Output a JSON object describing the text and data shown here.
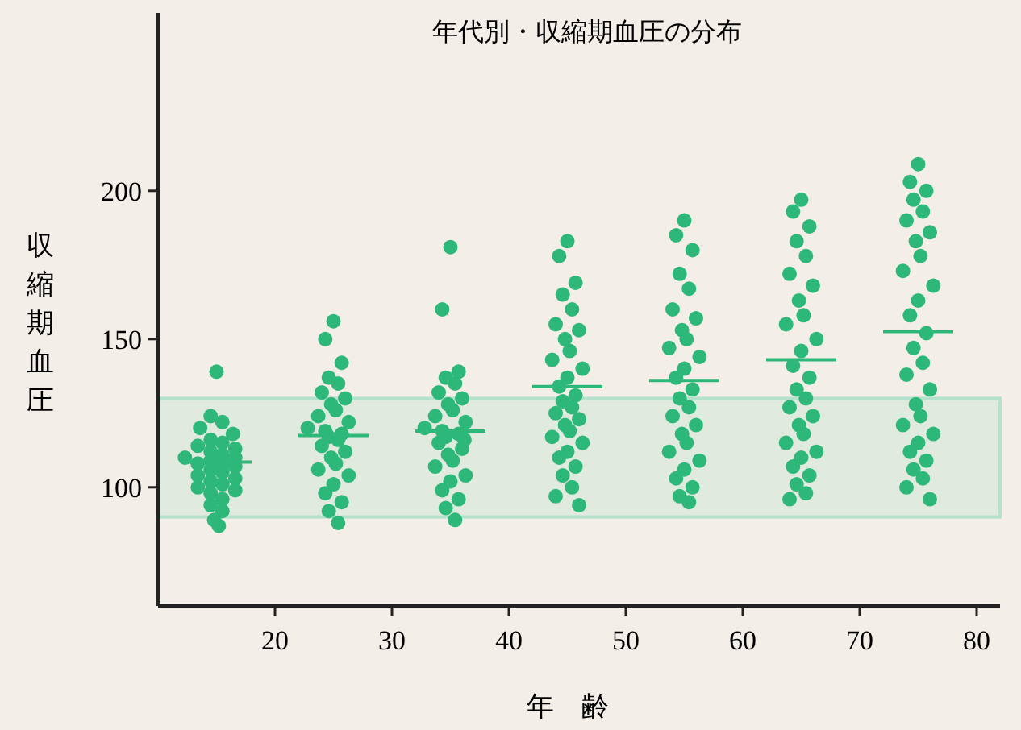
{
  "chart_data": {
    "type": "scatter",
    "title": "年代別・収縮期血圧の分布",
    "xlabel": "年　齢",
    "ylabel": "収縮期血圧",
    "xlim": [
      10,
      82
    ],
    "ylim": [
      60,
      260
    ],
    "xticks": [
      20,
      30,
      40,
      50,
      60,
      70,
      80
    ],
    "yticks": [
      100,
      150,
      200
    ],
    "marker": "circle",
    "grid": false,
    "bands": [
      {
        "axis": "y",
        "from": 90,
        "to": 130,
        "color": "#b5e2cc"
      }
    ],
    "series": [
      {
        "type": "line",
        "marker": "none",
        "color": "#2db87a",
        "x": [
          12,
          18
        ],
        "values": [
          108.5,
          108.5
        ]
      },
      {
        "type": "line",
        "marker": "none",
        "color": "#2db87a",
        "x": [
          22,
          28
        ],
        "values": [
          117.5,
          117.5
        ]
      },
      {
        "type": "line",
        "marker": "none",
        "color": "#2db87a",
        "x": [
          32,
          38
        ],
        "values": [
          119,
          119
        ]
      },
      {
        "type": "line",
        "marker": "none",
        "color": "#2db87a",
        "x": [
          42,
          48
        ],
        "values": [
          134,
          134
        ]
      },
      {
        "type": "line",
        "marker": "none",
        "color": "#2db87a",
        "x": [
          52,
          58
        ],
        "values": [
          136,
          136
        ]
      },
      {
        "type": "line",
        "marker": "none",
        "color": "#2db87a",
        "x": [
          62,
          68
        ],
        "values": [
          143,
          143
        ]
      },
      {
        "type": "line",
        "marker": "none",
        "color": "#2db87a",
        "x": [
          72,
          78
        ],
        "values": [
          152.5,
          152.5
        ]
      },
      {
        "color": "#2db87a",
        "x": [
          15,
          14.5,
          15.5,
          13.6,
          16.4,
          14.5,
          15.5,
          13.4,
          16.6,
          14.5,
          15.5,
          12.3,
          16.6,
          14.5,
          15.5,
          13.4,
          16.6,
          14.5,
          15.5,
          13.4,
          16.6,
          14.5,
          15.5,
          13.4,
          16.6,
          14.5,
          15.5,
          14.5,
          15.5,
          14.8,
          15.2
        ],
        "values": [
          139,
          124,
          122,
          120,
          118,
          116,
          115,
          114,
          113,
          112,
          111,
          110,
          110,
          109,
          108,
          108,
          107,
          106,
          105,
          104,
          103,
          102,
          101,
          100,
          99,
          98,
          96,
          94,
          92,
          89,
          87
        ]
      },
      {
        "color": "#2db87a",
        "x": [
          25,
          24.3,
          25.7,
          24.6,
          25.4,
          24,
          26,
          24.8,
          25.2,
          23.7,
          26.3,
          22.8,
          24.3,
          25.7,
          24.6,
          25.4,
          24,
          26,
          24.8,
          25.2,
          23.7,
          26.3,
          25,
          24.3,
          25.7,
          24.6,
          25.4
        ],
        "values": [
          156,
          150,
          142,
          137,
          135,
          132,
          130,
          128,
          126,
          124,
          122,
          120,
          119,
          118,
          117,
          116,
          114,
          112,
          110,
          108,
          106,
          104,
          101,
          98,
          95,
          92,
          88
        ]
      },
      {
        "color": "#2db87a",
        "x": [
          35,
          34.3,
          35.7,
          34.6,
          35.4,
          34,
          36,
          34.8,
          35.2,
          33.7,
          36.3,
          32.8,
          34.3,
          35.7,
          34.6,
          36.2,
          34,
          36,
          34.8,
          35.2,
          33.7,
          36.3,
          35,
          34.3,
          35.7,
          34.6,
          35.4
        ],
        "values": [
          181,
          160,
          139,
          137,
          135,
          132,
          130,
          128,
          126,
          124,
          122,
          120,
          119,
          118,
          117,
          116,
          115,
          113,
          111,
          109,
          107,
          104,
          102,
          99,
          96,
          93,
          89
        ]
      },
      {
        "color": "#2db87a",
        "x": [
          45,
          44.3,
          45.7,
          44.6,
          45.4,
          44,
          46,
          44.8,
          45.2,
          43.7,
          46.3,
          45,
          44.3,
          45.7,
          44.6,
          45.4,
          44,
          46,
          44.8,
          45.2,
          43.7,
          46.3,
          45,
          44.3,
          45.7,
          44.6,
          45.4,
          44,
          46
        ],
        "values": [
          183,
          178,
          169,
          165,
          160,
          155,
          153,
          150,
          146,
          143,
          140,
          137,
          134,
          131,
          129,
          127,
          125,
          123,
          121,
          119,
          117,
          115,
          112,
          110,
          107,
          104,
          100,
          97,
          94
        ]
      },
      {
        "color": "#2db87a",
        "x": [
          55,
          54.3,
          55.7,
          54.6,
          55.4,
          54,
          56,
          54.8,
          55.2,
          53.7,
          56.3,
          55,
          54.3,
          55.7,
          54.6,
          55.4,
          54,
          56,
          54.8,
          55.2,
          53.7,
          56.3,
          55,
          54.3,
          55.7,
          54.6,
          55.4
        ],
        "values": [
          190,
          185,
          180,
          172,
          167,
          160,
          157,
          153,
          150,
          147,
          144,
          140,
          137,
          133,
          130,
          127,
          124,
          121,
          118,
          115,
          112,
          109,
          106,
          103,
          100,
          97,
          95
        ]
      },
      {
        "color": "#2db87a",
        "x": [
          65,
          64.3,
          65.7,
          64.6,
          65.4,
          64,
          66,
          64.8,
          65.2,
          63.7,
          66.3,
          65,
          64.3,
          65.7,
          64.6,
          65.4,
          64,
          66,
          64.8,
          65.2,
          63.7,
          66.3,
          65,
          64.3,
          65.7,
          64.6,
          65.4,
          64
        ],
        "values": [
          197,
          193,
          188,
          183,
          178,
          172,
          168,
          163,
          158,
          155,
          150,
          146,
          141,
          137,
          133,
          130,
          127,
          124,
          121,
          118,
          115,
          112,
          110,
          107,
          104,
          101,
          98,
          96
        ]
      },
      {
        "color": "#2db87a",
        "x": [
          75,
          74.3,
          75.7,
          74.6,
          75.4,
          74,
          76,
          74.8,
          75.2,
          73.7,
          76.3,
          75,
          74.3,
          75.7,
          74.6,
          75.4,
          74,
          76,
          74.8,
          75.2,
          73.7,
          76.3,
          75,
          74.3,
          75.7,
          74.6,
          75.4,
          74,
          76
        ],
        "values": [
          209,
          203,
          200,
          197,
          193,
          190,
          186,
          183,
          178,
          173,
          168,
          163,
          158,
          152,
          147,
          142,
          138,
          133,
          128,
          124,
          121,
          118,
          115,
          112,
          109,
          106,
          103,
          100,
          96
        ]
      }
    ]
  }
}
